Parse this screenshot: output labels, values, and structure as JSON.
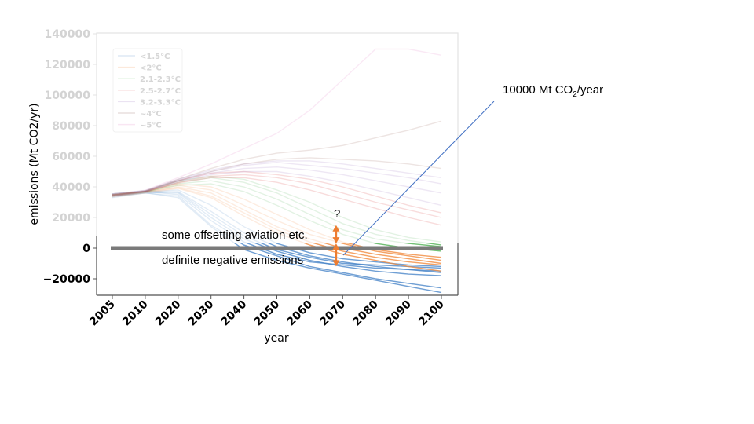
{
  "chart_data": {
    "type": "line",
    "xlabel": "year",
    "ylabel": "emissions (Mt CO2/yr)",
    "x": [
      2005,
      2010,
      2020,
      2030,
      2040,
      2050,
      2060,
      2070,
      2080,
      2090,
      2100
    ],
    "x_tick_labels": [
      "2005",
      "2010",
      "2020",
      "2030",
      "2040",
      "2050",
      "2060",
      "2070",
      "2080",
      "2090",
      "2100"
    ],
    "ylim": [
      -30000,
      140000
    ],
    "y_ticks": [
      -20000,
      0,
      20000,
      40000,
      60000,
      80000,
      100000,
      120000,
      140000
    ],
    "y_tick_labels": [
      "−20000",
      "0",
      "20000",
      "40000",
      "60000",
      "80000",
      "100000",
      "120000",
      "140000"
    ],
    "grid": false,
    "legend_position": "top-left",
    "faded_above_zero": true,
    "legend": [
      {
        "label": "<1.5°C",
        "color": "#4a86c8"
      },
      {
        "label": "<2°C",
        "color": "#f08a3c"
      },
      {
        "label": "2.1-2.3°C",
        "color": "#4caf50"
      },
      {
        "label": "2.5-2.7°C",
        "color": "#d62728"
      },
      {
        "label": "3.2-3.3°C",
        "color": "#9467bd"
      },
      {
        "label": "~4°C",
        "color": "#8c564b"
      },
      {
        "label": "~5°C",
        "color": "#e377c2"
      }
    ],
    "series": [
      {
        "group": 0,
        "values": [
          33000,
          36000,
          34000,
          15000,
          2000,
          -5000,
          -12000,
          -16000,
          -20000,
          -23000,
          -26000
        ]
      },
      {
        "group": 0,
        "values": [
          34000,
          36500,
          36000,
          20000,
          6000,
          -2000,
          -8000,
          -12000,
          -15000,
          -17000,
          -18000
        ]
      },
      {
        "group": 0,
        "values": [
          35000,
          37000,
          35000,
          18000,
          4000,
          -4000,
          -9000,
          -11000,
          -13000,
          -14000,
          -15000
        ]
      },
      {
        "group": 0,
        "values": [
          34000,
          36000,
          37000,
          24000,
          10000,
          1000,
          -5000,
          -9000,
          -12000,
          -14000,
          -16000
        ]
      },
      {
        "group": 0,
        "values": [
          33500,
          36200,
          33000,
          14000,
          -1000,
          -8000,
          -13000,
          -17000,
          -21000,
          -25000,
          -29000
        ]
      },
      {
        "group": 0,
        "values": [
          34500,
          36800,
          38000,
          28000,
          14000,
          3000,
          -3000,
          -7000,
          -9000,
          -11000,
          -12000
        ]
      },
      {
        "group": 0,
        "values": [
          35500,
          37500,
          36500,
          22000,
          8000,
          -1000,
          -6000,
          -10000,
          -11000,
          -12000,
          -13000
        ]
      },
      {
        "group": 1,
        "values": [
          34000,
          36500,
          40000,
          36000,
          25000,
          14000,
          6000,
          0,
          -4000,
          -7000,
          -10000
        ]
      },
      {
        "group": 1,
        "values": [
          35000,
          37000,
          41000,
          38000,
          28000,
          18000,
          9000,
          3000,
          -2000,
          -5000,
          -8000
        ]
      },
      {
        "group": 1,
        "values": [
          33500,
          36000,
          39000,
          33000,
          21000,
          10000,
          2000,
          -4000,
          -8000,
          -12000,
          -15000
        ]
      },
      {
        "group": 1,
        "values": [
          34500,
          37200,
          42000,
          40000,
          32000,
          22000,
          12000,
          4000,
          -1000,
          -4000,
          -6000
        ]
      },
      {
        "group": 1,
        "values": [
          35000,
          36800,
          39500,
          34000,
          23000,
          12000,
          4000,
          -2000,
          -6000,
          -9000,
          -11000
        ]
      },
      {
        "group": 2,
        "values": [
          34000,
          36500,
          42000,
          44000,
          40000,
          32000,
          22000,
          12000,
          6000,
          3000,
          1000
        ]
      },
      {
        "group": 2,
        "values": [
          35000,
          37000,
          43000,
          46000,
          43000,
          36000,
          26000,
          16000,
          9000,
          5000,
          2000
        ]
      },
      {
        "group": 2,
        "values": [
          34500,
          36800,
          41000,
          42000,
          37000,
          28000,
          18000,
          9000,
          3000,
          0,
          -2000
        ]
      },
      {
        "group": 2,
        "values": [
          35500,
          37500,
          44000,
          47000,
          45000,
          38000,
          30000,
          20000,
          12000,
          7000,
          4000
        ]
      },
      {
        "group": 3,
        "values": [
          34000,
          36600,
          43000,
          47000,
          48000,
          46000,
          42000,
          36000,
          30000,
          25000,
          20000
        ]
      },
      {
        "group": 3,
        "values": [
          35000,
          37200,
          44000,
          49000,
          50000,
          48000,
          45000,
          40000,
          34000,
          28000,
          23000
        ]
      },
      {
        "group": 3,
        "values": [
          34500,
          36900,
          42500,
          46000,
          46000,
          43000,
          38000,
          32000,
          26000,
          20000,
          15000
        ]
      },
      {
        "group": 4,
        "values": [
          34500,
          37000,
          44000,
          49000,
          52000,
          53000,
          51000,
          48000,
          44000,
          40000,
          36000
        ]
      },
      {
        "group": 4,
        "values": [
          35000,
          37300,
          44500,
          50000,
          54000,
          56000,
          54000,
          52000,
          49000,
          46000,
          42000
        ]
      },
      {
        "group": 4,
        "values": [
          34000,
          36800,
          43500,
          48000,
          50000,
          50000,
          47000,
          43000,
          38000,
          33000,
          28000
        ]
      },
      {
        "group": 4,
        "values": [
          35500,
          37600,
          45000,
          51000,
          55000,
          57000,
          57000,
          55000,
          52000,
          49000,
          46000
        ]
      },
      {
        "group": 5,
        "values": [
          35000,
          37400,
          45000,
          52000,
          58000,
          62000,
          64000,
          67000,
          72000,
          77000,
          83000
        ]
      },
      {
        "group": 5,
        "values": [
          34500,
          37100,
          44000,
          50000,
          55000,
          58000,
          59000,
          58000,
          57000,
          55000,
          52000
        ]
      },
      {
        "group": 6,
        "values": [
          35500,
          37800,
          46000,
          55000,
          65000,
          75000,
          90000,
          110000,
          130000,
          130000,
          126000
        ]
      }
    ],
    "zero_line": {
      "y": 0,
      "x_range": [
        2005,
        2100
      ]
    },
    "orange_arrow": {
      "x": 2068,
      "y_from": -12000,
      "y_to": 15000,
      "y_mid": 3000
    }
  },
  "annotations": {
    "question_mark": "?",
    "offsetting": "some offsetting aviation etc.",
    "negative": "definite negative emissions",
    "callout_main": "10000 Mt CO",
    "callout_sub": "2",
    "callout_tail": "/year"
  },
  "colors": {
    "axis_faded": "#e3e3e3",
    "axis_strong": "#555555",
    "tick_faded": "#d3d3d3",
    "zero_line": "#7a7a7a",
    "arrow": "#ed7d31",
    "callout_line": "#4472c4"
  }
}
